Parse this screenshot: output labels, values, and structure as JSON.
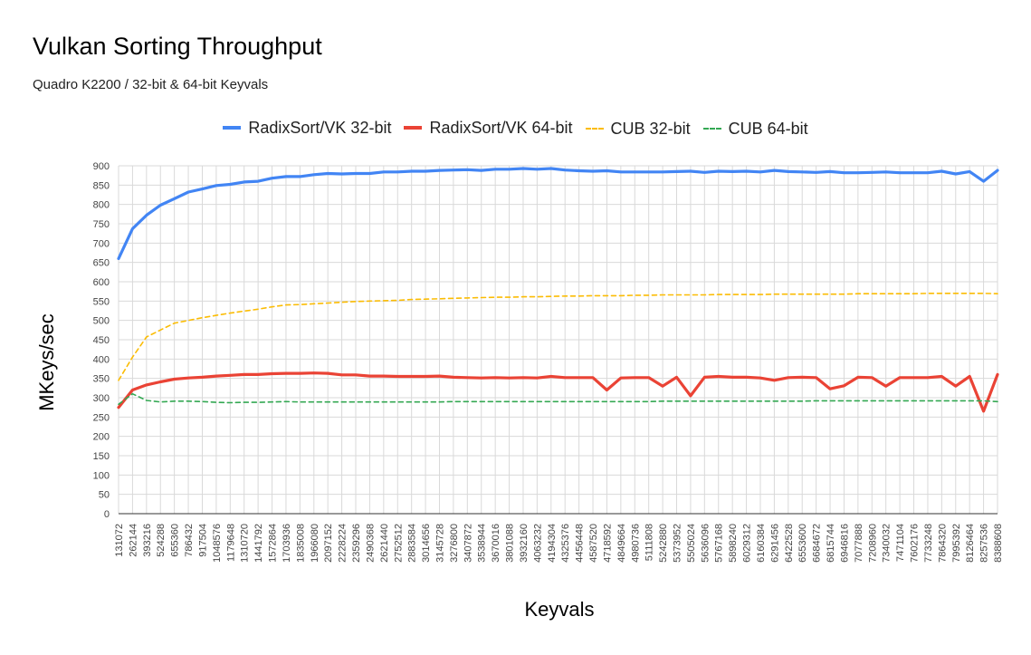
{
  "chart_data": {
    "type": "line",
    "title": "Vulkan Sorting Throughput",
    "subtitle": "Quadro K2200 / 32-bit & 64-bit Keyvals",
    "xlabel": "Keyvals",
    "ylabel": "MKeys/sec",
    "ylim": [
      0,
      900
    ],
    "yticks": [
      0,
      50,
      100,
      150,
      200,
      250,
      300,
      350,
      400,
      450,
      500,
      550,
      600,
      650,
      700,
      750,
      800,
      850,
      900
    ],
    "grid": true,
    "legend_position": "top",
    "categories": [
      "131072",
      "262144",
      "393216",
      "524288",
      "655360",
      "786432",
      "917504",
      "1048576",
      "1179648",
      "1310720",
      "1441792",
      "1572864",
      "1703936",
      "1835008",
      "1966080",
      "2097152",
      "2228224",
      "2359296",
      "2490368",
      "2621440",
      "2752512",
      "2883584",
      "3014656",
      "3145728",
      "3276800",
      "3407872",
      "3538944",
      "3670016",
      "3801088",
      "3932160",
      "4063232",
      "4194304",
      "4325376",
      "4456448",
      "4587520",
      "4718592",
      "4849664",
      "4980736",
      "5111808",
      "5242880",
      "5373952",
      "5505024",
      "5636096",
      "5767168",
      "5898240",
      "6029312",
      "6160384",
      "6291456",
      "6422528",
      "6553600",
      "6684672",
      "6815744",
      "6946816",
      "7077888",
      "7208960",
      "7340032",
      "7471104",
      "7602176",
      "7733248",
      "7864320",
      "7995392",
      "8126464",
      "8257536",
      "8388608"
    ],
    "series": [
      {
        "name": "RadixSort/VK 32-bit",
        "color": "#4285f4",
        "style": "solid",
        "values": [
          660,
          737,
          772,
          798,
          815,
          832,
          840,
          849,
          852,
          858,
          860,
          868,
          872,
          872,
          877,
          880,
          879,
          880,
          880,
          884,
          884,
          886,
          886,
          888,
          889,
          890,
          888,
          891,
          891,
          893,
          891,
          893,
          889,
          887,
          886,
          887,
          884,
          884,
          884,
          884,
          885,
          886,
          883,
          886,
          885,
          886,
          884,
          888,
          885,
          884,
          883,
          885,
          882,
          882,
          883,
          884,
          882,
          882,
          882,
          886,
          879,
          885,
          860,
          888
        ]
      },
      {
        "name": "RadixSort/VK 64-bit",
        "color": "#ea4335",
        "style": "solid",
        "values": [
          275,
          320,
          333,
          341,
          348,
          351,
          353,
          356,
          358,
          360,
          360,
          362,
          363,
          363,
          364,
          363,
          359,
          359,
          356,
          356,
          355,
          355,
          355,
          356,
          353,
          352,
          351,
          352,
          351,
          352,
          351,
          355,
          352,
          352,
          352,
          320,
          351,
          352,
          352,
          330,
          353,
          305,
          353,
          355,
          353,
          353,
          351,
          345,
          352,
          353,
          352,
          323,
          331,
          353,
          352,
          330,
          352,
          352,
          352,
          355,
          330,
          355,
          265,
          360
        ]
      },
      {
        "name": "CUB 32-bit",
        "color": "#fbbc04",
        "style": "dashed",
        "values": [
          345,
          405,
          457,
          475,
          493,
          500,
          507,
          513,
          519,
          524,
          529,
          535,
          540,
          541,
          543,
          545,
          547,
          549,
          550,
          551,
          552,
          554,
          555,
          556,
          557,
          558,
          559,
          560,
          560,
          561,
          561,
          562,
          563,
          563,
          564,
          564,
          564,
          565,
          565,
          566,
          566,
          566,
          566,
          567,
          567,
          567,
          567,
          568,
          568,
          568,
          568,
          568,
          568,
          569,
          569,
          569,
          569,
          569,
          570,
          570,
          570,
          570,
          570,
          569
        ]
      },
      {
        "name": "CUB 64-bit",
        "color": "#34a853",
        "style": "dashed",
        "values": [
          283,
          310,
          293,
          289,
          291,
          291,
          290,
          288,
          287,
          288,
          288,
          289,
          290,
          289,
          289,
          289,
          289,
          289,
          289,
          289,
          289,
          289,
          289,
          289,
          290,
          290,
          290,
          290,
          290,
          290,
          290,
          290,
          290,
          290,
          290,
          290,
          290,
          290,
          290,
          291,
          291,
          291,
          291,
          291,
          291,
          291,
          291,
          291,
          291,
          291,
          292,
          292,
          292,
          292,
          292,
          292,
          292,
          292,
          292,
          292,
          292,
          292,
          292,
          290
        ]
      }
    ]
  }
}
